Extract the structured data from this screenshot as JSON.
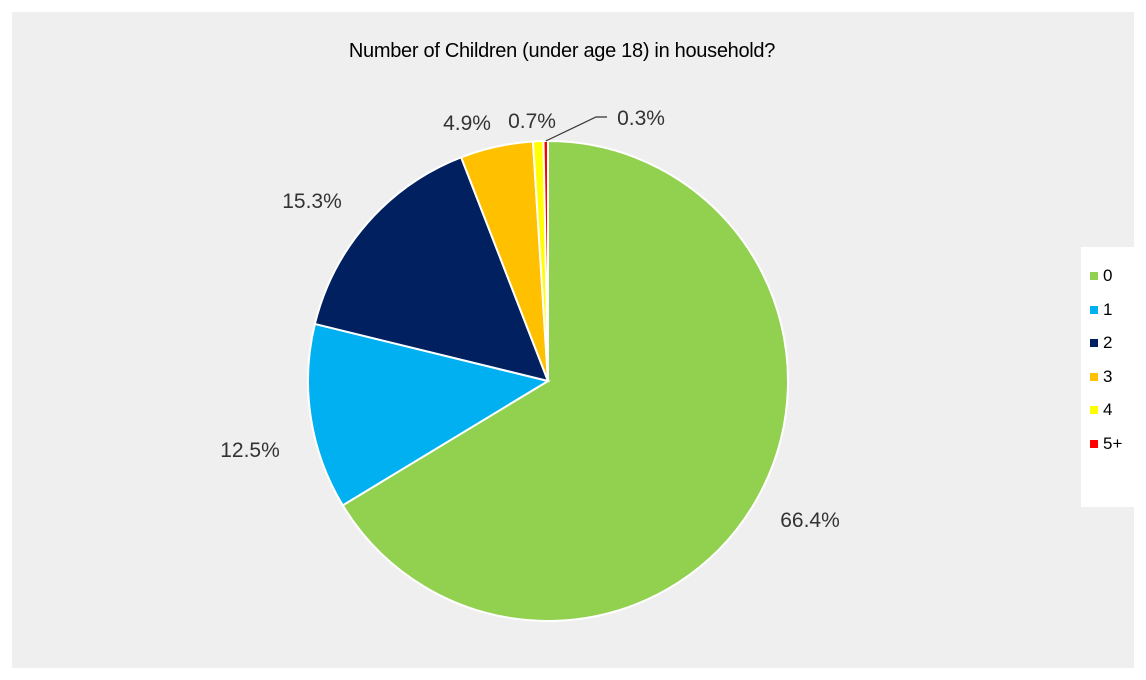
{
  "chart_data": {
    "type": "pie",
    "title": "Number of Children (under age 18) in household?",
    "categories": [
      "0",
      "1",
      "2",
      "3",
      "4",
      "5+"
    ],
    "values": [
      66.4,
      12.5,
      15.3,
      4.9,
      0.7,
      0.3
    ],
    "labels": [
      "66.4%",
      "12.5%",
      "15.3%",
      "4.9%",
      "0.7%",
      "0.3%"
    ],
    "colors": [
      "#92d050",
      "#00b0f0",
      "#002060",
      "#ffc000",
      "#ffff00",
      "#ff0000"
    ],
    "legend": "right",
    "start_angle": "12 o'clock",
    "direction": "clockwise"
  }
}
